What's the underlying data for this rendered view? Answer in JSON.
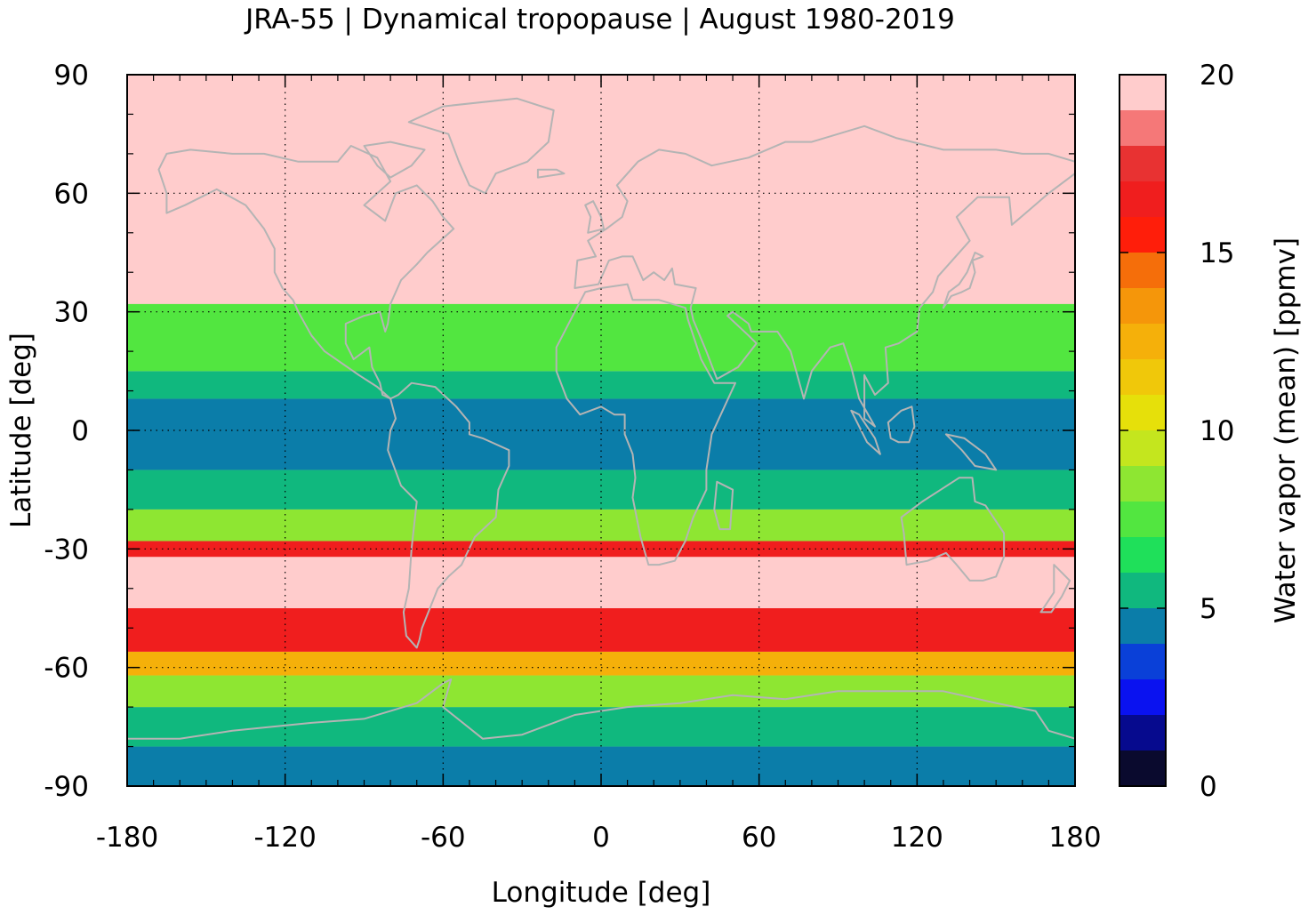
{
  "chart_data": {
    "type": "heatmap",
    "title": "JRA-55 | Dynamical tropopause | August 1980-2019",
    "xlabel": "Longitude [deg]",
    "ylabel": "Latitude [deg]",
    "xlim": [
      -180,
      180
    ],
    "ylim": [
      -90,
      90
    ],
    "x_ticks": [
      "-180",
      "-120",
      "-60",
      "0",
      "60",
      "120",
      "180"
    ],
    "y_ticks": [
      "90",
      "60",
      "30",
      "0",
      "-30",
      "-60",
      "-90"
    ],
    "grid": true,
    "colorbar": {
      "label": "Water vapor (mean) [ppmv]",
      "range": [
        0,
        20
      ],
      "ticks": [
        "0",
        "5",
        "10",
        "15",
        "20"
      ],
      "levels": [
        {
          "from": 0,
          "to": 1,
          "color": "#0a0a2e"
        },
        {
          "from": 1,
          "to": 2,
          "color": "#060a8e"
        },
        {
          "from": 2,
          "to": 3,
          "color": "#0a12f0"
        },
        {
          "from": 3,
          "to": 4,
          "color": "#0a40d8"
        },
        {
          "from": 4,
          "to": 5,
          "color": "#0b7da9"
        },
        {
          "from": 5,
          "to": 6,
          "color": "#10b87e"
        },
        {
          "from": 6,
          "to": 7,
          "color": "#1fe05a"
        },
        {
          "from": 7,
          "to": 8,
          "color": "#52e640"
        },
        {
          "from": 8,
          "to": 9,
          "color": "#8ee632"
        },
        {
          "from": 9,
          "to": 10,
          "color": "#c4e61e"
        },
        {
          "from": 10,
          "to": 11,
          "color": "#e6e00a"
        },
        {
          "from": 11,
          "to": 12,
          "color": "#f0c80a"
        },
        {
          "from": 12,
          "to": 13,
          "color": "#f5b00a"
        },
        {
          "from": 13,
          "to": 14,
          "color": "#f5960a"
        },
        {
          "from": 14,
          "to": 15,
          "color": "#f56e0a"
        },
        {
          "from": 15,
          "to": 16,
          "color": "#ff1e0a"
        },
        {
          "from": 16,
          "to": 17,
          "color": "#f01e1e"
        },
        {
          "from": 17,
          "to": 18,
          "color": "#e83232"
        },
        {
          "from": 18,
          "to": 19,
          "color": "#f57878"
        },
        {
          "from": 19,
          "to": 20,
          "color": "#ffcccc"
        }
      ]
    },
    "zonal_structure": [
      {
        "lat_range": [
          -90,
          -80
        ],
        "value_ppmv": 4.5
      },
      {
        "lat_range": [
          -80,
          -70
        ],
        "value_ppmv": 5.5
      },
      {
        "lat_range": [
          -70,
          -62
        ],
        "value_ppmv": 8.5
      },
      {
        "lat_range": [
          -62,
          -56
        ],
        "value_ppmv": 12.5
      },
      {
        "lat_range": [
          -56,
          -45
        ],
        "value_ppmv": 16.5
      },
      {
        "lat_range": [
          -45,
          -32
        ],
        "value_ppmv": 19.5
      },
      {
        "lat_range": [
          -32,
          -28
        ],
        "value_ppmv": 16.5
      },
      {
        "lat_range": [
          -28,
          -20
        ],
        "value_ppmv": 8.5
      },
      {
        "lat_range": [
          -20,
          -10
        ],
        "value_ppmv": 5.5
      },
      {
        "lat_range": [
          -10,
          8
        ],
        "value_ppmv": 4.5
      },
      {
        "lat_range": [
          8,
          15
        ],
        "value_ppmv": 5.5
      },
      {
        "lat_range": [
          15,
          32
        ],
        "value_ppmv": 7.5
      },
      {
        "lat_range": [
          32,
          90
        ],
        "value_ppmv": 19.5
      }
    ],
    "colors": {
      "coastline": "#b4b4b4",
      "grid": "#000000",
      "background": "#ffcccc"
    }
  }
}
